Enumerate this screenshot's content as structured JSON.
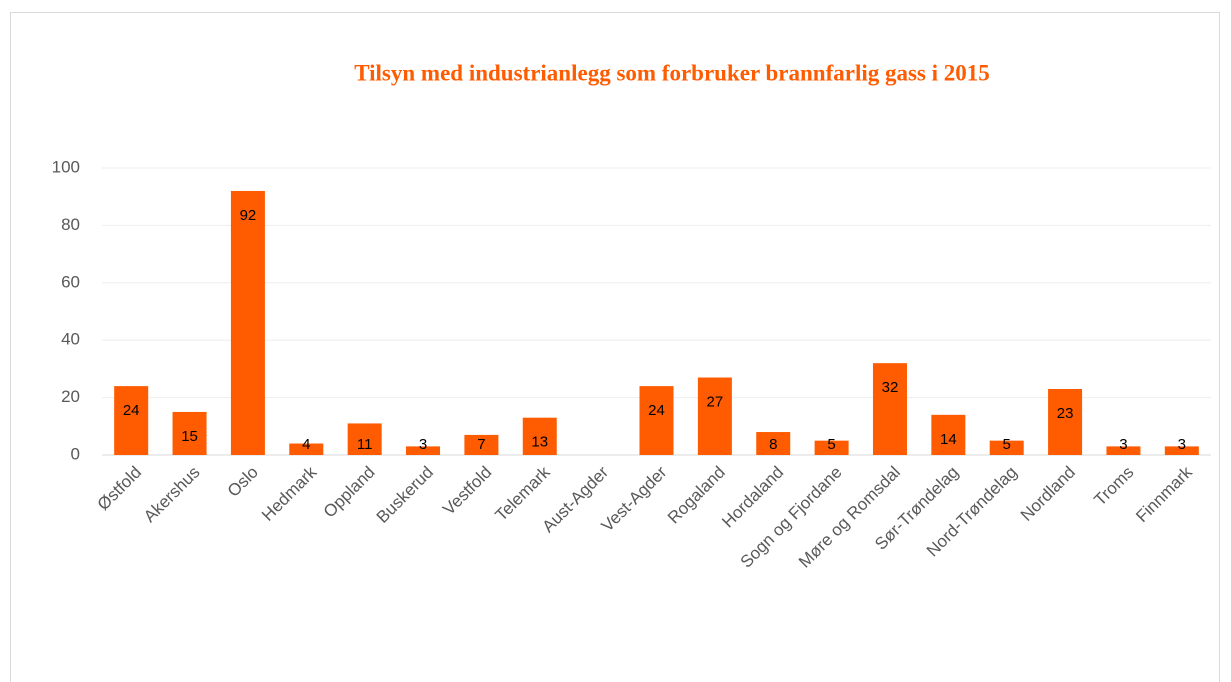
{
  "chart_data": {
    "type": "bar",
    "title": "Tilsyn med industrianlegg som forbruker brannfarlig gass i 2015",
    "categories": [
      "Østfold",
      "Akershus",
      "Oslo",
      "Hedmark",
      "Oppland",
      "Buskerud",
      "Vestfold",
      "Telemark",
      "Aust-Agder",
      "Vest-Agder",
      "Rogaland",
      "Hordaland",
      "Sogn og Fjordane",
      "Møre og Romsdal",
      "Sør-Trøndelag",
      "Nord-Trøndelag",
      "Nordland",
      "Troms",
      "Finnmark"
    ],
    "values": [
      24,
      15,
      92,
      4,
      11,
      3,
      7,
      13,
      null,
      24,
      27,
      8,
      5,
      32,
      14,
      5,
      23,
      3,
      3
    ],
    "color": "#ff5b00",
    "ylim": [
      0,
      100
    ],
    "yticks": [
      0,
      20,
      40,
      60,
      80,
      100
    ],
    "grid": true
  }
}
